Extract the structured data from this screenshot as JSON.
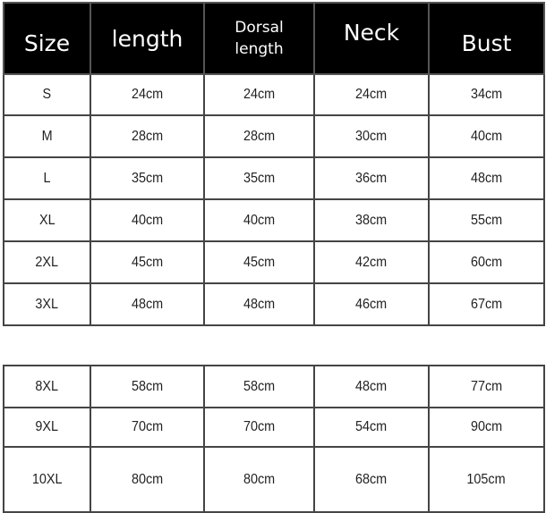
{
  "headers": {
    "size": "Size",
    "length": "length",
    "dorsal_line1": "Dorsal",
    "dorsal_line2": "length",
    "neck": "Neck",
    "bust": "Bust"
  },
  "rows": [
    {
      "size": "S",
      "length": "24cm",
      "dorsal": "24cm",
      "neck": "24cm",
      "bust": "34cm"
    },
    {
      "size": "M",
      "length": "28cm",
      "dorsal": "28cm",
      "neck": "30cm",
      "bust": "40cm"
    },
    {
      "size": "L",
      "length": "35cm",
      "dorsal": "35cm",
      "neck": "36cm",
      "bust": "48cm"
    },
    {
      "size": "XL",
      "length": "40cm",
      "dorsal": "40cm",
      "neck": "38cm",
      "bust": "55cm"
    },
    {
      "size": "2XL",
      "length": "45cm",
      "dorsal": "45cm",
      "neck": "42cm",
      "bust": "60cm"
    },
    {
      "size": "3XL",
      "length": "48cm",
      "dorsal": "48cm",
      "neck": "46cm",
      "bust": "67cm"
    },
    {
      "size": "8XL",
      "length": "58cm",
      "dorsal": "58cm",
      "neck": "48cm",
      "bust": "77cm"
    },
    {
      "size": "9XL",
      "length": "70cm",
      "dorsal": "70cm",
      "neck": "54cm",
      "bust": "90cm"
    },
    {
      "size": "10XL",
      "length": "80cm",
      "dorsal": "80cm",
      "neck": "68cm",
      "bust": "105cm"
    }
  ]
}
